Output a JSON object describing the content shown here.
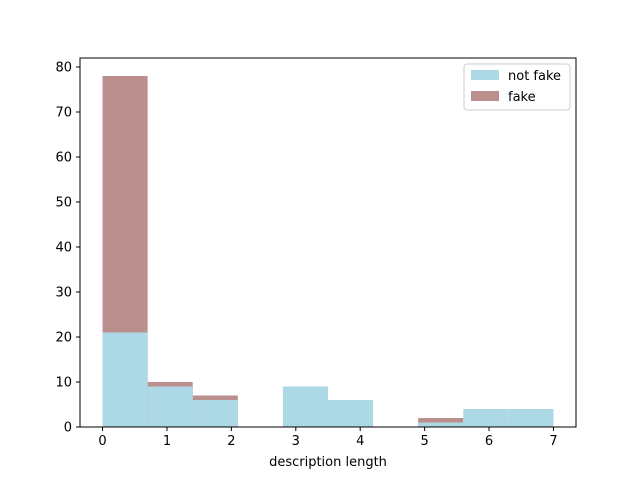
{
  "chart_data": {
    "type": "bar",
    "xlabel": "description length",
    "ylabel": "",
    "xlim": [
      -0.35,
      7.35
    ],
    "ylim": [
      0,
      82
    ],
    "x_ticks": [
      0,
      1,
      2,
      3,
      4,
      5,
      6,
      7
    ],
    "y_ticks": [
      0,
      10,
      20,
      30,
      40,
      50,
      60,
      70,
      80
    ],
    "legend_position": "top-right",
    "grid": false,
    "bin_edges": [
      0,
      0.7,
      1.4,
      2.1,
      2.8,
      3.5,
      4.2,
      4.9,
      5.6,
      6.3,
      7.0
    ],
    "series": [
      {
        "name": "not fake",
        "color": "#add8e6",
        "values": [
          21,
          9,
          6,
          0,
          9,
          6,
          0,
          1,
          4,
          4
        ]
      },
      {
        "name": "fake",
        "color": "#bc8f8f",
        "values": [
          78,
          10,
          7,
          0,
          0,
          0,
          0,
          2,
          0,
          0
        ]
      }
    ]
  }
}
